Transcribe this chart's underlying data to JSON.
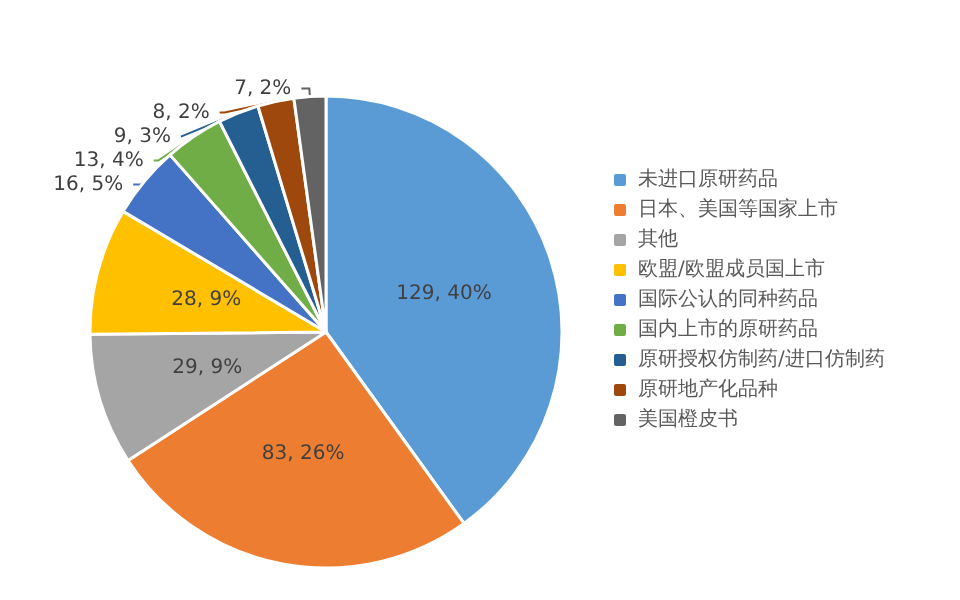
{
  "chart_data": {
    "type": "pie",
    "categories": [
      "未进口原研药品",
      "日本、美国等国家上市",
      "其他",
      "欧盟/欧盟成员国上市",
      "国际公认的同种药品",
      "国内上市的原研药品",
      "原研授权仿制药/进口仿制药",
      "原研地产化品种",
      "美国橙皮书"
    ],
    "values": [
      129,
      83,
      29,
      28,
      16,
      13,
      9,
      8,
      7
    ],
    "value_labels": [
      "129, 40%",
      "83, 26%",
      "29, 9%",
      "28, 9%",
      "16, 5%",
      "13, 4%",
      "9, 3%",
      "8, 2%",
      "7, 2%"
    ],
    "colors": [
      "#5b9bd5",
      "#ed7d31",
      "#a5a5a5",
      "#ffc000",
      "#4472c4",
      "#70ad47",
      "#255e91",
      "#9e480e",
      "#636363"
    ],
    "legend": "right"
  }
}
